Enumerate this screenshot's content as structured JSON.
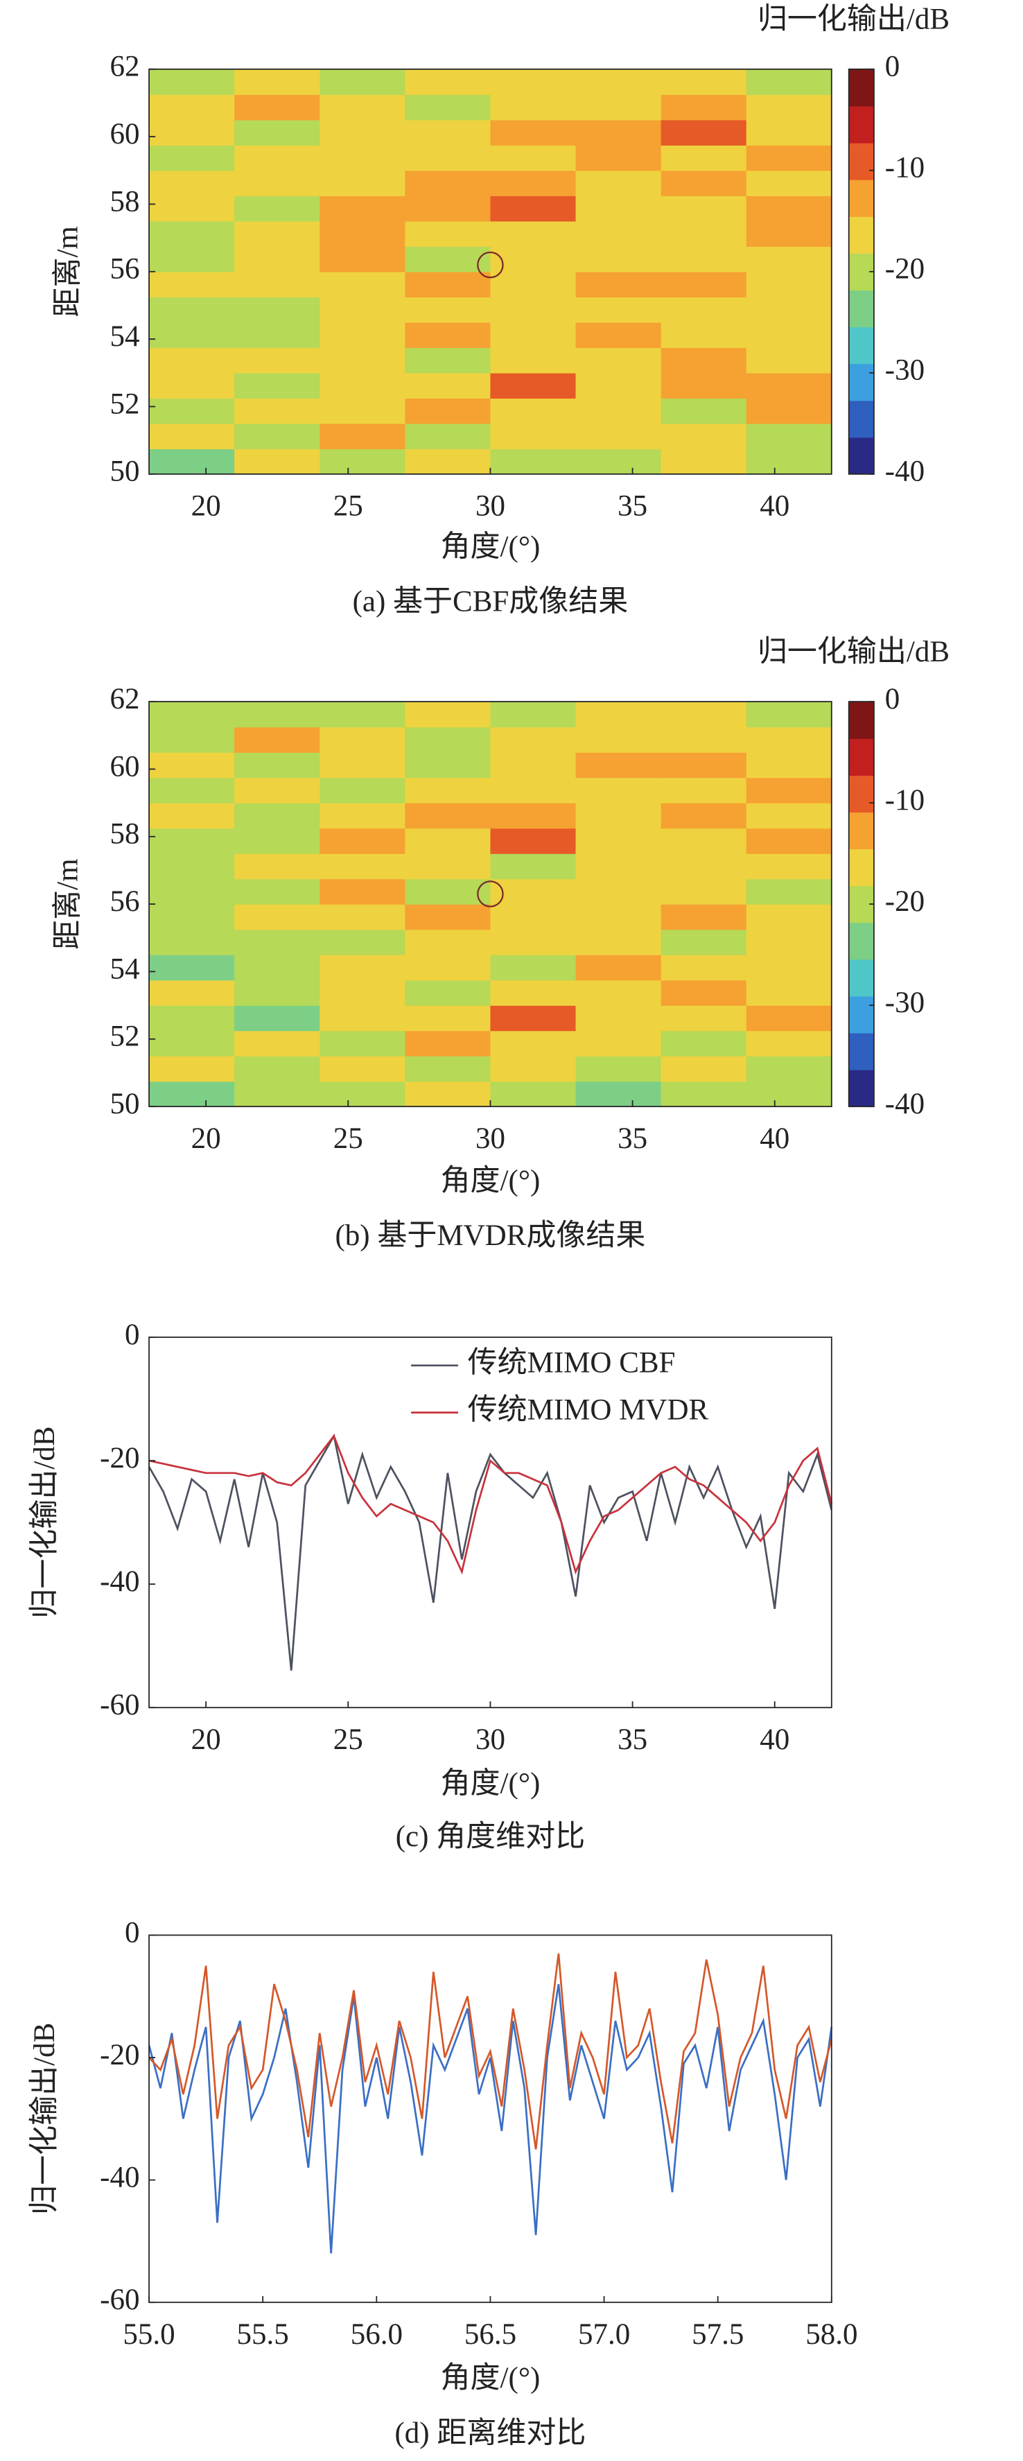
{
  "chart_data": [
    {
      "type": "heatmap",
      "title": "(a) 基于CBF成像结果",
      "xlabel": "角度/(°)",
      "ylabel": "距离/m",
      "xlim": [
        18,
        42
      ],
      "ylim": [
        50,
        62
      ],
      "xticks": [
        20,
        25,
        30,
        35,
        40
      ],
      "yticks": [
        50,
        52,
        54,
        56,
        58,
        60,
        62
      ],
      "z": [
        [
          -22,
          -18,
          -20,
          -17,
          -19,
          -21,
          -18,
          -20
        ],
        [
          -17,
          -19,
          -14,
          -20,
          -16,
          -18,
          -15,
          -19
        ],
        [
          -20,
          -16,
          -18,
          -12,
          -17,
          -15,
          -19,
          -14
        ],
        [
          -18,
          -21,
          -15,
          -17,
          -10,
          -16,
          -14,
          -12
        ],
        [
          -16,
          -18,
          -17,
          -19,
          -15,
          -17,
          -13,
          -16
        ],
        [
          -21,
          -19,
          -16,
          -14,
          -18,
          -13,
          -16,
          -15
        ],
        [
          -19,
          -20,
          -18,
          -16,
          -17,
          -15,
          -18,
          -17
        ],
        [
          -18,
          -17,
          -15,
          -13,
          -16,
          -14,
          -12,
          -15
        ],
        [
          -20,
          -18,
          -13,
          -19,
          -17,
          -16,
          -15,
          -18
        ],
        [
          -19,
          -17,
          -14,
          -15,
          -18,
          -17,
          -16,
          -14
        ],
        [
          -18,
          -19,
          -12,
          -14,
          -10,
          -16,
          -15,
          -13
        ],
        [
          -17,
          -18,
          -16,
          -13,
          -12,
          -15,
          -11,
          -16
        ],
        [
          -19,
          -17,
          -18,
          -15,
          -17,
          -14,
          -16,
          -12
        ],
        [
          -16,
          -19,
          -17,
          -18,
          -14,
          -13,
          -10,
          -15
        ],
        [
          -18,
          -12,
          -17,
          -19,
          -16,
          -15,
          -14,
          -17
        ],
        [
          -20,
          -18,
          -19,
          -17,
          -18,
          -16,
          -17,
          -19
        ]
      ],
      "clim": [
        -40,
        0
      ],
      "cticks": [
        0,
        -10,
        -20,
        -30,
        -40
      ],
      "colorbar_label": "归一化输出/dB",
      "colormap": [
        "#2a2a86",
        "#2f5fbf",
        "#3b9fe0",
        "#4fc7c9",
        "#7dcf86",
        "#b6d957",
        "#efd23f",
        "#f5a232",
        "#e65a27",
        "#c21f1f",
        "#7e1616"
      ],
      "target": [
        30,
        56.2
      ]
    },
    {
      "type": "heatmap",
      "title": "(b) 基于MVDR成像结果",
      "xlabel": "角度/(°)",
      "ylabel": "距离/m",
      "xlim": [
        18,
        42
      ],
      "ylim": [
        50,
        62
      ],
      "xticks": [
        20,
        25,
        30,
        35,
        40
      ],
      "yticks": [
        50,
        52,
        54,
        56,
        58,
        60,
        62
      ],
      "z": [
        [
          -24,
          -19,
          -21,
          -18,
          -20,
          -22,
          -19,
          -21
        ],
        [
          -18,
          -20,
          -15,
          -21,
          -17,
          -19,
          -16,
          -20
        ],
        [
          -21,
          -17,
          -19,
          -11,
          -18,
          -16,
          -20,
          -15
        ],
        [
          -19,
          -22,
          -16,
          -18,
          -9,
          -17,
          -15,
          -13
        ],
        [
          -17,
          -19,
          -18,
          -20,
          -16,
          -18,
          -14,
          -17
        ],
        [
          -22,
          -20,
          -17,
          -15,
          -19,
          -14,
          -17,
          -16
        ],
        [
          -20,
          -21,
          -19,
          -17,
          -18,
          -16,
          -19,
          -18
        ],
        [
          -19,
          -18,
          -16,
          -12,
          -17,
          -15,
          -13,
          -16
        ],
        [
          -21,
          -19,
          -14,
          -20,
          -18,
          -17,
          -16,
          -19
        ],
        [
          -20,
          -18,
          -15,
          -16,
          -19,
          -18,
          -17,
          -15
        ],
        [
          -19,
          -20,
          -13,
          -15,
          -9,
          -17,
          -16,
          -14
        ],
        [
          -18,
          -19,
          -17,
          -14,
          -13,
          -16,
          -12,
          -17
        ],
        [
          -20,
          -18,
          -19,
          -16,
          -18,
          -15,
          -17,
          -11
        ],
        [
          -17,
          -20,
          -18,
          -19,
          -15,
          -14,
          -11,
          -16
        ],
        [
          -19,
          -11,
          -18,
          -20,
          -17,
          -16,
          -15,
          -18
        ],
        [
          -21,
          -19,
          -20,
          -18,
          -19,
          -17,
          -18,
          -20
        ]
      ],
      "clim": [
        -40,
        0
      ],
      "cticks": [
        0,
        -10,
        -20,
        -30,
        -40
      ],
      "colorbar_label": "归一化输出/dB",
      "colormap": [
        "#2a2a86",
        "#2f5fbf",
        "#3b9fe0",
        "#4fc7c9",
        "#7dcf86",
        "#b6d957",
        "#efd23f",
        "#f5a232",
        "#e65a27",
        "#c21f1f",
        "#7e1616"
      ],
      "target": [
        30,
        56.3
      ]
    },
    {
      "type": "line",
      "title": "(c) 角度维对比",
      "xlabel": "角度/(°)",
      "ylabel": "归一化输出/dB",
      "xlim": [
        18,
        42
      ],
      "ylim": [
        -60,
        0
      ],
      "xticks": [
        20,
        25,
        30,
        35,
        40
      ],
      "yticks": [
        0,
        -20,
        -40,
        -60
      ],
      "legend": "north",
      "x": [
        18,
        18.5,
        19,
        19.5,
        20,
        20.5,
        21,
        21.5,
        22,
        22.5,
        23,
        23.5,
        24,
        24.5,
        25,
        25.5,
        26,
        26.5,
        27,
        27.5,
        28,
        28.5,
        29,
        29.5,
        30,
        30.5,
        31,
        31.5,
        32,
        32.5,
        33,
        33.5,
        34,
        34.5,
        35,
        35.5,
        36,
        36.5,
        37,
        37.5,
        38,
        38.5,
        39,
        39.5,
        40,
        40.5,
        41,
        41.5,
        42
      ],
      "series": [
        {
          "name": "传统MIMO CBF",
          "color": "#4d5260",
          "values": [
            -21,
            -25,
            -31,
            -23,
            -25,
            -33,
            -23,
            -34,
            -22,
            -30,
            -54,
            -24,
            -20,
            -16,
            -27,
            -19,
            -26,
            -21,
            -25,
            -30,
            -43,
            -22,
            -36,
            -25,
            -19,
            -22,
            -24,
            -26,
            -22,
            -30,
            -42,
            -24,
            -30,
            -26,
            -25,
            -33,
            -22,
            -30,
            -21,
            -26,
            -21,
            -28,
            -34,
            -29,
            -44,
            -22,
            -25,
            -19,
            -28
          ]
        },
        {
          "name": "传统MIMO MVDR",
          "color": "#c8323c",
          "values": [
            -20,
            -20.5,
            -21,
            -21.5,
            -22,
            -22,
            -22,
            -22.5,
            -22,
            -23.5,
            -24,
            -22,
            -19,
            -16,
            -22,
            -26,
            -29,
            -27,
            -28,
            -29,
            -30,
            -33,
            -38,
            -28,
            -20,
            -22,
            -22,
            -23,
            -24,
            -30,
            -38,
            -33,
            -29,
            -28,
            -26,
            -24,
            -22,
            -21,
            -23,
            -24,
            -26,
            -28,
            -30,
            -33,
            -30,
            -24,
            -20,
            -18,
            -27
          ]
        }
      ]
    },
    {
      "type": "line",
      "title": "(d) 距离维对比",
      "xlabel": "角度/(°)",
      "ylabel": "归一化输出/dB",
      "xlim": [
        55,
        58
      ],
      "ylim": [
        -60,
        0
      ],
      "xticks": [
        {
          "value": 55,
          "label": "55.0"
        },
        {
          "value": 55.5,
          "label": "55.5"
        },
        {
          "value": 56,
          "label": "56.0"
        },
        {
          "value": 56.5,
          "label": "56.5"
        },
        {
          "value": 57,
          "label": "57.0"
        },
        {
          "value": 57.5,
          "label": "57.5"
        },
        {
          "value": 58,
          "label": "58.0"
        }
      ],
      "yticks": [
        0,
        -20,
        -40,
        -60
      ],
      "x": [
        55,
        55.05,
        55.1,
        55.15,
        55.2,
        55.25,
        55.3,
        55.35,
        55.4,
        55.45,
        55.5,
        55.55,
        55.6,
        55.65,
        55.7,
        55.75,
        55.8,
        55.85,
        55.9,
        55.95,
        56,
        56.05,
        56.1,
        56.15,
        56.2,
        56.25,
        56.3,
        56.35,
        56.4,
        56.45,
        56.5,
        56.55,
        56.6,
        56.65,
        56.7,
        56.75,
        56.8,
        56.85,
        56.9,
        56.95,
        57,
        57.05,
        57.1,
        57.15,
        57.2,
        57.25,
        57.3,
        57.35,
        57.4,
        57.45,
        57.5,
        57.55,
        57.6,
        57.65,
        57.7,
        57.75,
        57.8,
        57.85,
        57.9,
        57.95,
        58
      ],
      "series": [
        {
          "color": "#3a6fc4",
          "values": [
            -18,
            -25,
            -16,
            -30,
            -22,
            -15,
            -47,
            -20,
            -14,
            -30,
            -26,
            -20,
            -12,
            -24,
            -38,
            -18,
            -52,
            -22,
            -10,
            -28,
            -20,
            -30,
            -15,
            -24,
            -36,
            -18,
            -22,
            -17,
            -12,
            -26,
            -20,
            -32,
            -14,
            -25,
            -49,
            -20,
            -8,
            -27,
            -18,
            -24,
            -30,
            -14,
            -22,
            -20,
            -16,
            -28,
            -42,
            -21,
            -18,
            -25,
            -15,
            -32,
            -22,
            -18,
            -14,
            -26,
            -40,
            -20,
            -17,
            -28,
            -15
          ]
        },
        {
          "color": "#d4582a",
          "values": [
            -20,
            -22,
            -17,
            -26,
            -18,
            -5,
            -30,
            -18,
            -15,
            -25,
            -22,
            -8,
            -14,
            -22,
            -33,
            -16,
            -28,
            -20,
            -9,
            -24,
            -18,
            -26,
            -14,
            -20,
            -30,
            -6,
            -20,
            -15,
            -10,
            -23,
            -19,
            -28,
            -12,
            -22,
            -35,
            -18,
            -3,
            -25,
            -16,
            -20,
            -26,
            -6,
            -20,
            -18,
            -12,
            -24,
            -34,
            -19,
            -16,
            -4,
            -13,
            -28,
            -20,
            -16,
            -5,
            -22,
            -30,
            -18,
            -15,
            -24,
            -17
          ]
        }
      ]
    }
  ]
}
